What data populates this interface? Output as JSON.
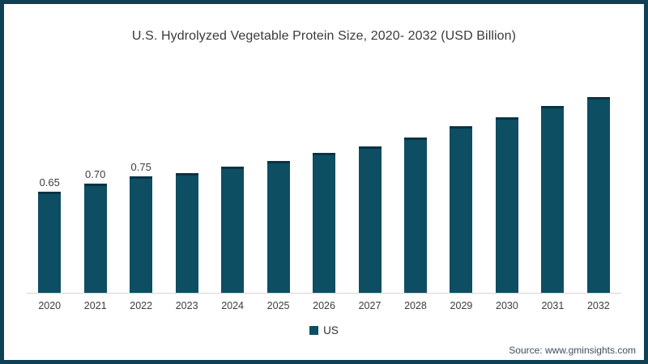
{
  "frame": {
    "border_color": "#0f4156",
    "background": "#ffffff"
  },
  "chart_data": {
    "type": "bar",
    "title": "U.S. Hydrolyzed Vegetable Protein Size, 2020- 2032 (USD Billion)",
    "categories": [
      "2020",
      "2021",
      "2022",
      "2023",
      "2024",
      "2025",
      "2026",
      "2027",
      "2028",
      "2029",
      "2030",
      "2031",
      "2032"
    ],
    "series": [
      {
        "name": "US",
        "values": [
          0.65,
          0.7,
          0.75,
          0.77,
          0.81,
          0.85,
          0.9,
          0.94,
          1.0,
          1.07,
          1.13,
          1.2,
          1.26
        ]
      }
    ],
    "data_labels": [
      "0.65",
      "0.70",
      "0.75",
      "",
      "",
      "",
      "",
      "",
      "",
      "",
      "",
      "",
      ""
    ],
    "xlabel": "",
    "ylabel": "",
    "ylim": [
      0,
      1.3
    ],
    "grid": false,
    "legend_position": "bottom",
    "bar_color": "#0d4e63",
    "bar_top_edge_color": "#0a3344",
    "axis_line_color": "#d6d6d6"
  },
  "legend": {
    "label": "US",
    "swatch_color": "#0d4e63"
  },
  "footer": {
    "source": "Source: www.gminsights.com"
  }
}
